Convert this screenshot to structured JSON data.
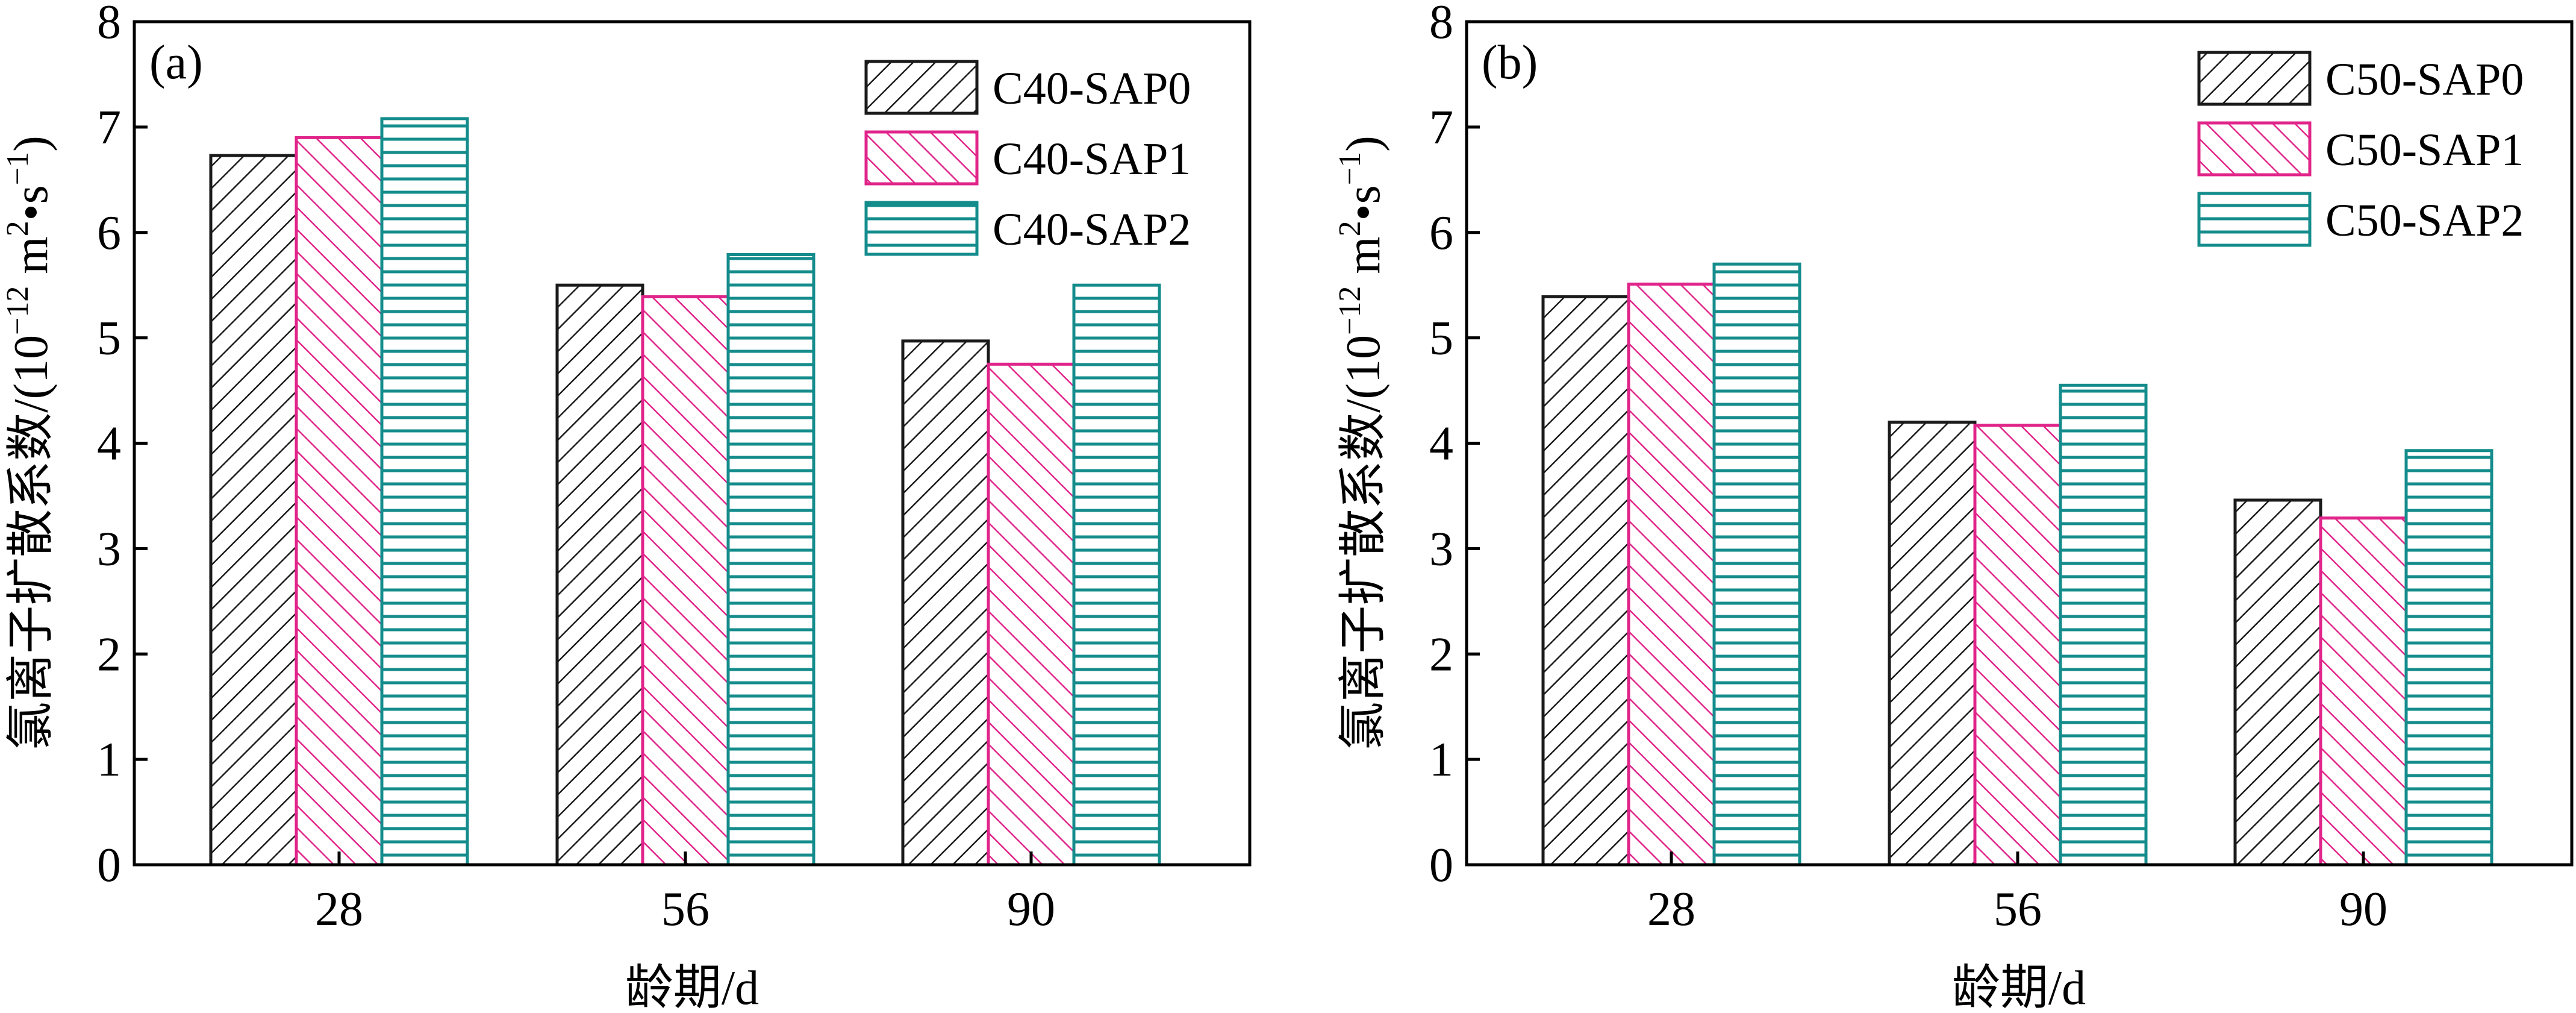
{
  "colors": {
    "black": "#1a1a1a",
    "magenta": "#e0248a",
    "teal": "#158c8c"
  },
  "units": {
    "ylabel_prefix": "氯离子扩散系数/(10",
    "ylabel_exp1": "−12",
    "ylabel_mid": " m",
    "ylabel_exp2": "2",
    "ylabel_dot": "•s",
    "ylabel_exp3": "−1",
    "ylabel_suffix": ")"
  },
  "chart_data": [
    {
      "type": "bar",
      "panel_label": "(a)",
      "xlabel": "龄期/d",
      "ylabel": "氯离子扩散系数/(10−12 m2•s−1)",
      "categories": [
        "28",
        "56",
        "90"
      ],
      "ylim": [
        0,
        8
      ],
      "yticks": [
        "0",
        "1",
        "2",
        "3",
        "4",
        "5",
        "6",
        "7",
        "8"
      ],
      "legend_position": "top-right",
      "series": [
        {
          "name": "C40-SAP0",
          "values": [
            6.73,
            5.5,
            4.97
          ],
          "color": "black",
          "hatch": "forward"
        },
        {
          "name": "C40-SAP1",
          "values": [
            6.9,
            5.39,
            4.75
          ],
          "color": "magenta",
          "hatch": "back"
        },
        {
          "name": "C40-SAP2",
          "values": [
            7.08,
            5.79,
            5.5
          ],
          "color": "teal",
          "hatch": "horizontal"
        }
      ]
    },
    {
      "type": "bar",
      "panel_label": "(b)",
      "xlabel": "龄期/d",
      "ylabel": "氯离子扩散系数/(10−12 m2•s−1)",
      "categories": [
        "28",
        "56",
        "90"
      ],
      "ylim": [
        0,
        8
      ],
      "yticks": [
        "0",
        "1",
        "2",
        "3",
        "4",
        "5",
        "6",
        "7",
        "8"
      ],
      "legend_position": "top-right",
      "series": [
        {
          "name": "C50-SAP0",
          "values": [
            5.39,
            4.2,
            3.46
          ],
          "color": "black",
          "hatch": "forward"
        },
        {
          "name": "C50-SAP1",
          "values": [
            5.51,
            4.17,
            3.29
          ],
          "color": "magenta",
          "hatch": "back"
        },
        {
          "name": "C50-SAP2",
          "values": [
            5.7,
            4.55,
            3.93
          ],
          "color": "teal",
          "hatch": "horizontal"
        }
      ]
    }
  ]
}
